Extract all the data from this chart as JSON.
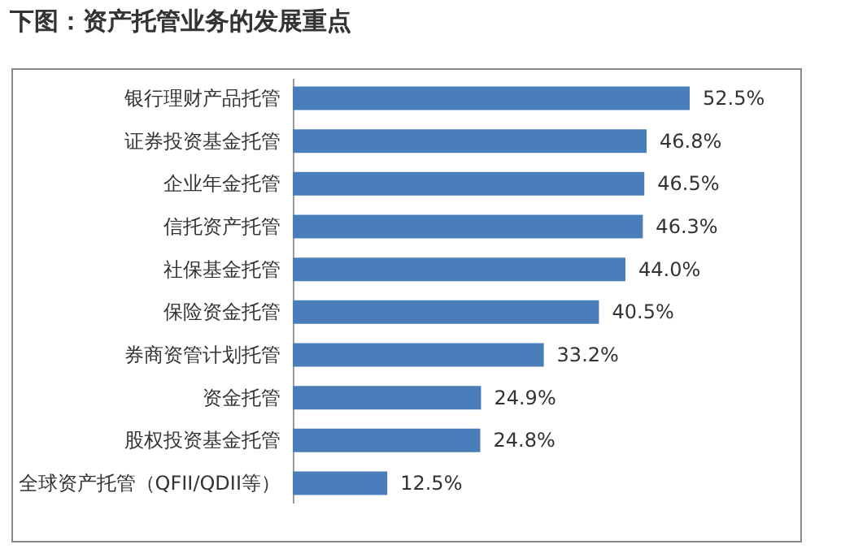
{
  "chart_data": {
    "type": "bar",
    "title": "下图：资产托管业务的发展重点",
    "orientation": "horizontal",
    "categories": [
      "银行理财产品托管",
      "证券投资基金托管",
      "企业年金托管",
      "信托资产托管",
      "社保基金托管",
      "保险资金托管",
      "券商资管计划托管",
      "资金托管",
      "股权投资基金托管",
      "全球资产托管（QFII/QDII等）"
    ],
    "values": [
      52.5,
      46.8,
      46.5,
      46.3,
      44.0,
      40.5,
      33.2,
      24.9,
      24.8,
      12.5
    ],
    "value_labels": [
      "52.5%",
      "46.8%",
      "46.5%",
      "46.3%",
      "44.0%",
      "40.5%",
      "33.2%",
      "24.9%",
      "24.8%",
      "12.5%"
    ],
    "color": "#4a7ebb",
    "grid": false
  }
}
